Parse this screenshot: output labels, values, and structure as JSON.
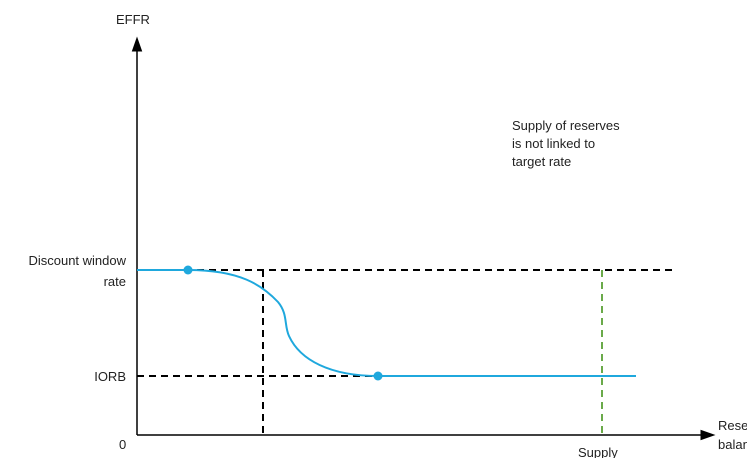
{
  "diagram": {
    "y_axis_label": "EFFR",
    "x_axis_label_line1": "Reserve",
    "x_axis_label_line2": "balance",
    "origin_label": "0",
    "discount_window_label_line1": "Discount window",
    "discount_window_label_line2": "rate",
    "iorb_label": "IORB",
    "supply_label": "Supply",
    "annotation_line1": "Supply of reserves",
    "annotation_line2": "is not linked to",
    "annotation_line3": "target rate"
  },
  "colors": {
    "demand_curve": "#1fa8dd",
    "supply_line": "#6aaa4a",
    "guide_lines": "#000000",
    "axes": "#000000",
    "text": "#222222"
  }
}
